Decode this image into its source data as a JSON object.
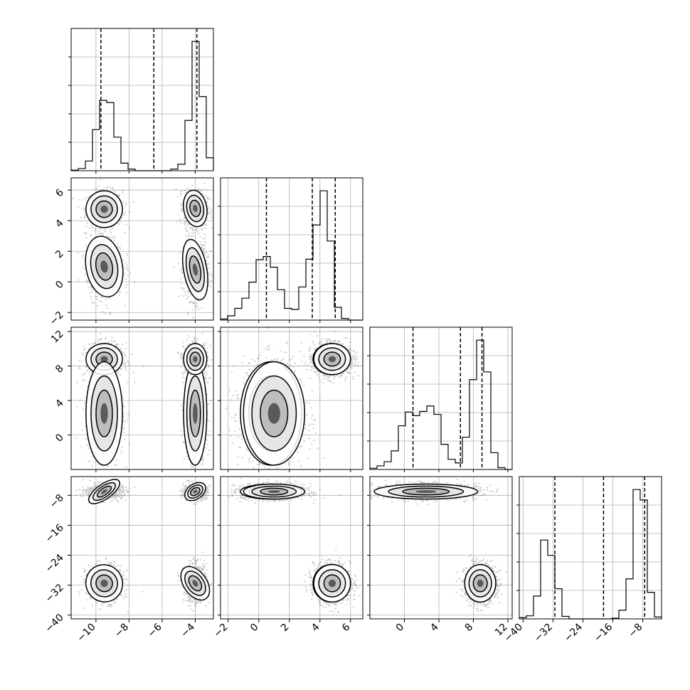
{
  "chart_data": {
    "type": "corner",
    "parameters": 4,
    "grid": true,
    "colors": {
      "line": "#000000",
      "grid": "#b0b0b0",
      "points": "#000000",
      "background": "#ffffff"
    },
    "axes": [
      {
        "lim": [
          -11.5,
          -2.9
        ],
        "ticks": [
          -10,
          -8,
          -6,
          -4
        ],
        "ticklabels": [
          "−10",
          "−8",
          "−6",
          "−4"
        ]
      },
      {
        "lim": [
          -2.5,
          6.8
        ],
        "ticks": [
          -2,
          0,
          2,
          4,
          6
        ],
        "ticklabels": [
          "−2",
          "0",
          "2",
          "4",
          "6"
        ]
      },
      {
        "lim": [
          -4,
          12.5
        ],
        "ticks": [
          0,
          4,
          8,
          12
        ],
        "ticklabels": [
          "0",
          "4",
          "8",
          "12"
        ]
      },
      {
        "lim": [
          -41,
          -3
        ],
        "ticks": [
          -40,
          -32,
          -24,
          -16,
          -8
        ],
        "ticklabels": [
          "−40",
          "−32",
          "−24",
          "−16",
          "−8"
        ]
      }
    ],
    "quantiles": [
      [
        -9.7,
        -6.5,
        -3.9
      ],
      [
        0.5,
        3.5,
        5.0
      ],
      [
        1.0,
        6.5,
        9.0
      ],
      [
        -31.5,
        -18.5,
        -7.5
      ]
    ],
    "histograms": [
      {
        "edges": [
          -11.5,
          -11.07,
          -10.64,
          -10.21,
          -9.78,
          -9.35,
          -8.92,
          -8.49,
          -8.06,
          -7.63,
          -7.2,
          -6.77,
          -6.34,
          -5.91,
          -5.48,
          -5.05,
          -4.62,
          -4.19,
          -3.76,
          -3.33,
          -2.9
        ],
        "counts": [
          1,
          4,
          18,
          76,
          130,
          126,
          62,
          14,
          3,
          0,
          0,
          0,
          0,
          0,
          3,
          12,
          93,
          239,
          137,
          24
        ]
      },
      {
        "edges": [
          -2.5,
          -2.035,
          -1.57,
          -1.105,
          -0.64,
          -0.175,
          0.29,
          0.755,
          1.22,
          1.685,
          2.15,
          2.615,
          3.08,
          3.545,
          4.01,
          4.475,
          4.94,
          5.405,
          5.87,
          6.335,
          6.8
        ],
        "counts": [
          2,
          8,
          22,
          41,
          71,
          113,
          119,
          99,
          57,
          22,
          20,
          62,
          114,
          178,
          242,
          148,
          24,
          3,
          0,
          0
        ]
      },
      {
        "edges": [
          -4,
          -3.175,
          -2.35,
          -1.525,
          -0.7,
          0.125,
          0.95,
          1.775,
          2.6,
          3.425,
          4.25,
          5.075,
          5.9,
          6.725,
          7.55,
          8.375,
          9.2,
          10.025,
          10.85,
          11.675,
          12.5
        ],
        "counts": [
          2,
          6,
          13,
          31,
          73,
          96,
          90,
          97,
          106,
          92,
          42,
          17,
          11,
          54,
          150,
          216,
          163,
          28,
          3,
          0
        ]
      },
      {
        "edges": [
          -41,
          -39.1,
          -37.2,
          -35.3,
          -33.4,
          -31.5,
          -29.6,
          -27.7,
          -25.8,
          -23.9,
          -22,
          -20.1,
          -18.2,
          -16.3,
          -14.4,
          -12.5,
          -10.6,
          -8.7,
          -6.8,
          -4.9,
          -3
        ],
        "counts": [
          2,
          5,
          37,
          128,
          103,
          49,
          4,
          0,
          0,
          0,
          0,
          0,
          0,
          1,
          14,
          65,
          210,
          193,
          43,
          3
        ]
      }
    ],
    "clusters": [
      {
        "mean": [
          -9.5,
          4.75,
          8.8,
          -31.5
        ],
        "sd": [
          0.55,
          0.6,
          0.9,
          2.5
        ]
      },
      {
        "mean": [
          -4.0,
          0.8,
          2.5,
          -7.0
        ],
        "sd": [
          0.35,
          1.0,
          3.0,
          1.0
        ]
      },
      {
        "mean": [
          -4.0,
          4.8,
          8.8,
          -31.5
        ],
        "sd": [
          0.35,
          0.6,
          0.9,
          2.5
        ]
      },
      {
        "mean": [
          -9.5,
          1.0,
          2.5,
          -7.0
        ],
        "sd": [
          0.55,
          1.0,
          3.0,
          1.0
        ]
      }
    ]
  }
}
